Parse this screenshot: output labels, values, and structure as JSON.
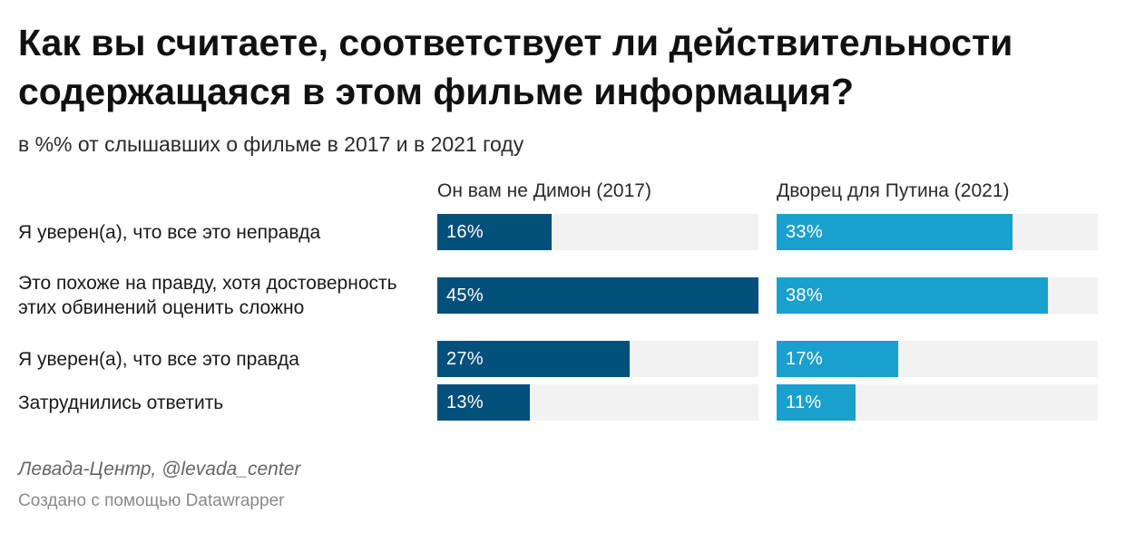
{
  "chart_data": {
    "type": "bar",
    "title": "Как вы считаете, соответствует ли действительности содержащаяся в этом фильме информация?",
    "subtitle": "в %% от слышавших о фильме в 2017 и в 2021 году",
    "categories": [
      "Я уверен(а), что все это неправда",
      "Это похоже на правду, хотя достоверность этих обвинений оценить сложно",
      "Я уверен(а), что все это правда",
      "Затруднились ответить"
    ],
    "series": [
      {
        "name": "Он вам не Димон (2017)",
        "values": [
          16,
          45,
          27,
          13
        ],
        "color": "#03507d"
      },
      {
        "name": "Дворец для Путина (2021)",
        "values": [
          33,
          38,
          17,
          11
        ],
        "color": "#1aa0cc"
      }
    ],
    "value_labels": {
      "s0": [
        "16%",
        "45%",
        "27%",
        "13%"
      ],
      "s1": [
        "33%",
        "38%",
        "17%",
        "11%"
      ]
    },
    "xlim": [
      0,
      45
    ],
    "track_color": "#f2f2f2",
    "source": "Левада-Центр, @levada_center",
    "credit": "Создано с помощью Datawrapper"
  }
}
